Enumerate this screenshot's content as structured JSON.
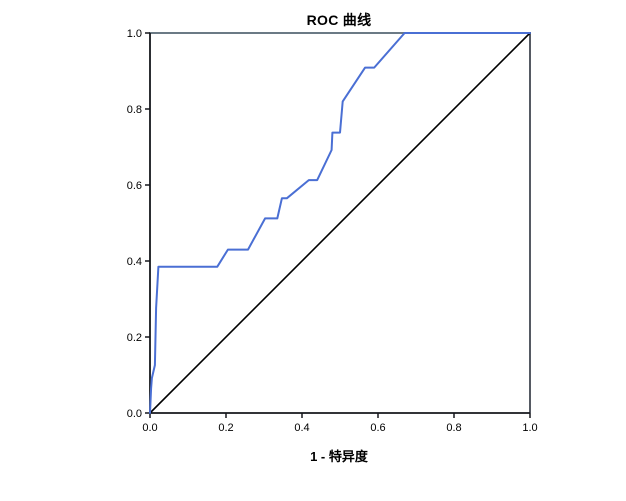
{
  "figure": {
    "background": "#ffffff"
  },
  "chart_data": {
    "type": "line",
    "title": "ROC 曲线",
    "xlabel": "1 - 特异度",
    "ylabel": "",
    "xlim": [
      0,
      1
    ],
    "ylim": [
      0,
      1
    ],
    "grid": false,
    "legend": "none",
    "xticks": [
      0.0,
      0.2,
      0.4,
      0.6,
      0.8,
      1.0
    ],
    "xtick_labels": [
      "0.0",
      "0.2",
      "0.4",
      "0.6",
      "0.8",
      "1.0"
    ],
    "yticks": [
      0.0,
      0.2,
      0.4,
      0.6,
      0.8,
      1.0
    ],
    "ytick_labels": [
      "0.0",
      "0.2",
      "0.4",
      "0.6",
      "0.8",
      "1.0"
    ],
    "frame_colors": {
      "top": "#6b7a85",
      "left": "#15171c",
      "bottom": "#15171c",
      "right": "#2b313c"
    },
    "tick_color": "#15171c",
    "series": [
      {
        "id": "roc-curve",
        "name": "ROC 曲线",
        "color": "#4a6fd4",
        "width": 2,
        "points": [
          [
            0.0,
            0.0
          ],
          [
            0.003,
            0.065
          ],
          [
            0.005,
            0.092
          ],
          [
            0.013,
            0.126
          ],
          [
            0.016,
            0.276
          ],
          [
            0.022,
            0.385
          ],
          [
            0.177,
            0.385
          ],
          [
            0.205,
            0.43
          ],
          [
            0.258,
            0.43
          ],
          [
            0.303,
            0.512
          ],
          [
            0.335,
            0.512
          ],
          [
            0.347,
            0.565
          ],
          [
            0.36,
            0.565
          ],
          [
            0.418,
            0.613
          ],
          [
            0.44,
            0.613
          ],
          [
            0.478,
            0.692
          ],
          [
            0.48,
            0.738
          ],
          [
            0.5,
            0.738
          ],
          [
            0.507,
            0.82
          ],
          [
            0.566,
            0.909
          ],
          [
            0.59,
            0.909
          ],
          [
            0.67,
            1.0
          ],
          [
            1.0,
            1.0
          ]
        ]
      },
      {
        "id": "reference-line",
        "name": "参考线",
        "color": "#000000",
        "width": 1.6,
        "points": [
          [
            0,
            0
          ],
          [
            1,
            1
          ]
        ]
      }
    ]
  }
}
